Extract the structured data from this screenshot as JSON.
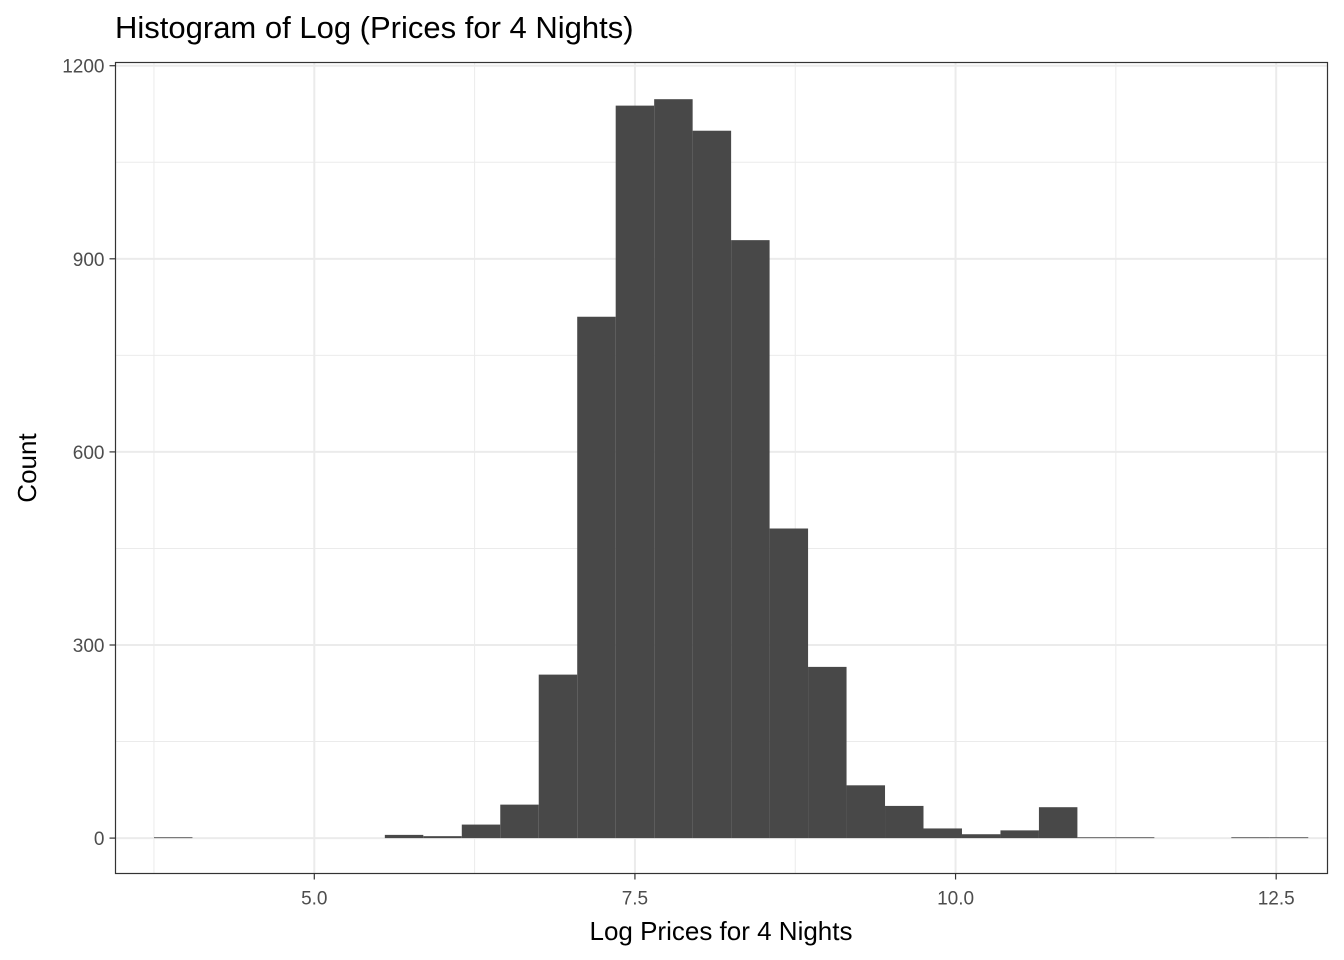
{
  "chart_data": {
    "type": "bar",
    "title": "Histogram of Log (Prices for 4 Nights)",
    "xlabel": "Log Prices for 4 Nights",
    "ylabel": "Count",
    "xlim": [
      3.45,
      12.9
    ],
    "ylim": [
      -55,
      1205
    ],
    "x_ticks": [
      5.0,
      7.5,
      10.0,
      12.5
    ],
    "x_tick_labels": [
      "5.0",
      "7.5",
      "10.0",
      "12.5"
    ],
    "y_ticks": [
      0,
      300,
      600,
      900,
      1200
    ],
    "y_tick_labels": [
      "0",
      "300",
      "600",
      "900",
      "1200"
    ],
    "grid": true,
    "bar_color": "#484848",
    "bins": [
      {
        "x0": 3.75,
        "x1": 4.05,
        "count": 1
      },
      {
        "x0": 5.55,
        "x1": 5.85,
        "count": 5
      },
      {
        "x0": 5.85,
        "x1": 6.15,
        "count": 3
      },
      {
        "x0": 6.15,
        "x1": 6.45,
        "count": 21
      },
      {
        "x0": 6.45,
        "x1": 6.75,
        "count": 52
      },
      {
        "x0": 6.75,
        "x1": 7.05,
        "count": 254
      },
      {
        "x0": 7.05,
        "x1": 7.35,
        "count": 810
      },
      {
        "x0": 7.35,
        "x1": 7.65,
        "count": 1138
      },
      {
        "x0": 7.65,
        "x1": 7.95,
        "count": 1148
      },
      {
        "x0": 7.95,
        "x1": 8.25,
        "count": 1099
      },
      {
        "x0": 8.25,
        "x1": 8.55,
        "count": 929
      },
      {
        "x0": 8.55,
        "x1": 8.85,
        "count": 481
      },
      {
        "x0": 8.85,
        "x1": 9.15,
        "count": 266
      },
      {
        "x0": 9.15,
        "x1": 9.45,
        "count": 82
      },
      {
        "x0": 9.45,
        "x1": 9.75,
        "count": 50
      },
      {
        "x0": 9.75,
        "x1": 10.05,
        "count": 15
      },
      {
        "x0": 10.05,
        "x1": 10.35,
        "count": 6
      },
      {
        "x0": 10.35,
        "x1": 10.65,
        "count": 12
      },
      {
        "x0": 10.65,
        "x1": 10.95,
        "count": 48
      },
      {
        "x0": 10.95,
        "x1": 11.25,
        "count": 1
      },
      {
        "x0": 11.25,
        "x1": 11.55,
        "count": 1
      },
      {
        "x0": 12.15,
        "x1": 12.45,
        "count": 1
      },
      {
        "x0": 12.45,
        "x1": 12.75,
        "count": 1
      }
    ]
  }
}
